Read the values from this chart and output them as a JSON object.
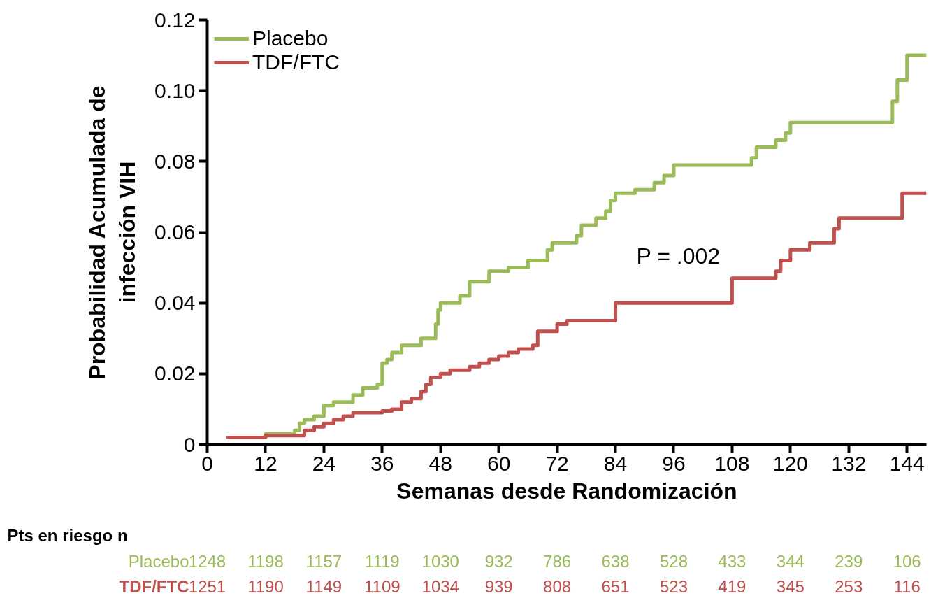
{
  "chart_data": {
    "type": "step",
    "xlabel": "Semanas desde Randomización",
    "ylabel": "Probabilidad Acumulada de infección VIH",
    "xlim": [
      0,
      148
    ],
    "ylim": [
      0,
      0.12
    ],
    "xticks": [
      0,
      12,
      24,
      36,
      48,
      60,
      72,
      84,
      96,
      108,
      120,
      132,
      144
    ],
    "yticks": [
      0,
      0.02,
      0.04,
      0.06,
      0.08,
      {
        "value": 0.1,
        "label": "0.10"
      },
      0.12
    ],
    "grid": false,
    "legend": "top left",
    "line_style": "solid",
    "marker": "none",
    "series": [
      {
        "name": "Placebo",
        "color": "#9bbb59",
        "x": [
          4,
          12,
          18,
          19,
          20,
          22,
          24,
          26,
          30,
          32,
          35,
          36,
          37,
          38,
          40,
          44,
          47,
          47.5,
          48,
          52,
          54,
          58,
          62,
          66,
          70,
          71,
          76,
          77,
          80,
          82,
          83,
          84,
          88,
          92,
          94,
          96,
          112,
          113,
          117,
          119,
          120,
          141,
          142,
          144,
          148
        ],
        "values": [
          0.002,
          0.003,
          0.004,
          0.006,
          0.007,
          0.008,
          0.011,
          0.012,
          0.014,
          0.016,
          0.017,
          0.023,
          0.024,
          0.026,
          0.028,
          0.03,
          0.034,
          0.038,
          0.04,
          0.042,
          0.046,
          0.049,
          0.05,
          0.052,
          0.055,
          0.057,
          0.059,
          0.062,
          0.064,
          0.066,
          0.069,
          0.071,
          0.072,
          0.074,
          0.076,
          0.079,
          0.081,
          0.084,
          0.086,
          0.088,
          0.091,
          0.097,
          0.103,
          0.11,
          0.11
        ]
      },
      {
        "name": "TDF/FTC",
        "color": "#c0504d",
        "x": [
          4,
          12,
          20,
          22,
          24,
          26,
          28,
          30,
          36,
          38,
          40,
          42,
          44,
          45,
          46,
          48,
          50,
          54,
          56,
          58,
          60,
          62,
          64,
          67,
          68,
          72,
          74,
          84,
          108,
          117,
          118,
          120,
          124,
          129,
          130,
          143,
          148
        ],
        "values": [
          0.002,
          0.0025,
          0.004,
          0.005,
          0.006,
          0.007,
          0.008,
          0.009,
          0.0095,
          0.01,
          0.012,
          0.013,
          0.015,
          0.017,
          0.019,
          0.02,
          0.021,
          0.022,
          0.023,
          0.024,
          0.025,
          0.026,
          0.027,
          0.028,
          0.032,
          0.034,
          0.035,
          0.04,
          0.047,
          0.049,
          0.052,
          0.055,
          0.057,
          0.061,
          0.064,
          0.071,
          0.071
        ]
      }
    ],
    "annotations": [
      "P = .002",
      "Pts en riesgo  n",
      "1248",
      "1198",
      "1157",
      "1119",
      "1030",
      "932",
      "786",
      "638",
      "528",
      "433",
      "344",
      "239",
      "106",
      "1251",
      "1190",
      "1149",
      "1109",
      "1034",
      "939",
      "808",
      "651",
      "523",
      "419",
      "345",
      "253",
      "116"
    ]
  }
}
